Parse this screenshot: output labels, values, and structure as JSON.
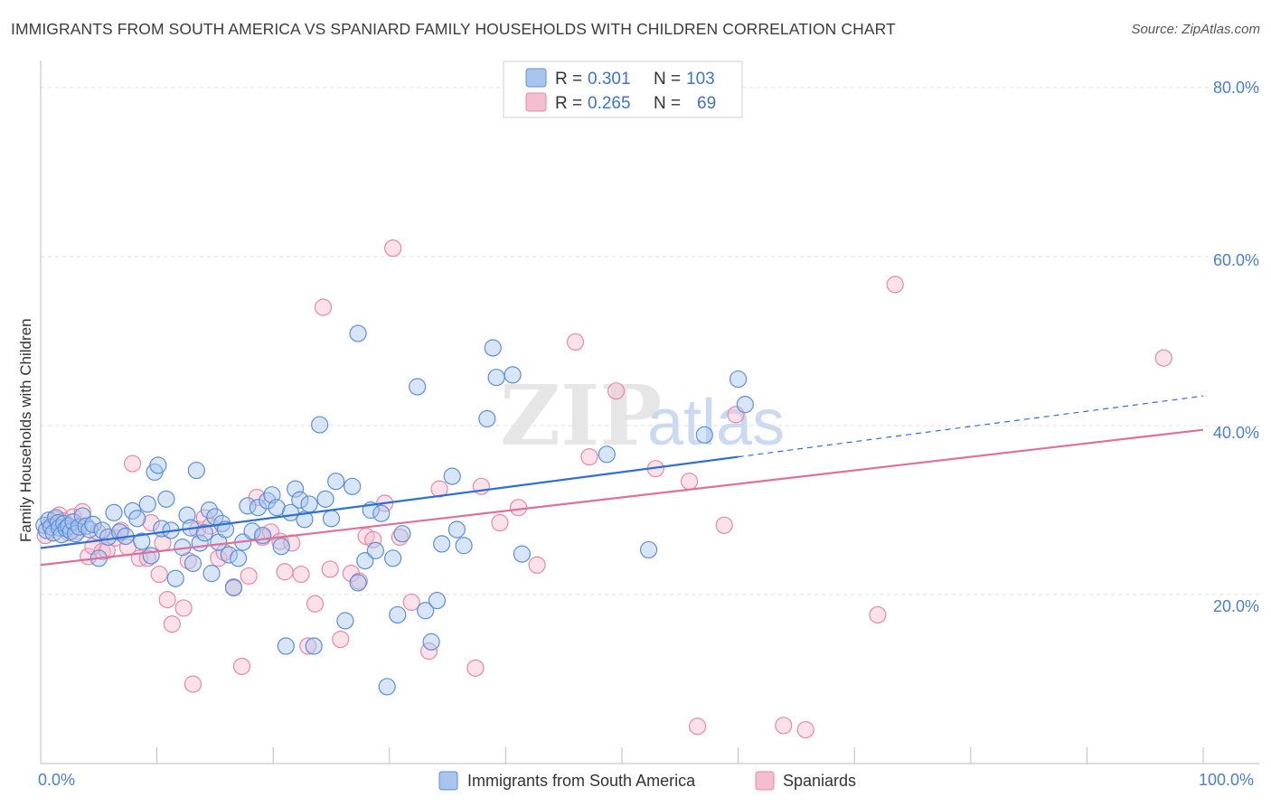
{
  "header": {
    "title": "IMMIGRANTS FROM SOUTH AMERICA VS SPANIARD FAMILY HOUSEHOLDS WITH CHILDREN CORRELATION CHART",
    "source": "Source: ZipAtlas.com"
  },
  "watermark": "ZIPatlas",
  "colors": {
    "blue": "#5b8fd8",
    "blue_fill": "#a9c5ee",
    "blue_line": "#2f6fd0",
    "pink": "#e58aa6",
    "pink_fill": "#f5bdd0",
    "pink_line": "#e0709a",
    "axis_text": "#4a7fd0"
  },
  "legend": {
    "r_label": "R =",
    "n_label": "N =",
    "blue_r": "0.301",
    "blue_n": "103",
    "pink_r": "0.265",
    "pink_n": "69"
  },
  "bottom_legend": {
    "blue": "Immigrants from South America",
    "pink": "Spaniards"
  },
  "chart_data": {
    "type": "scatter",
    "title": "IMMIGRANTS FROM SOUTH AMERICA VS SPANIARD FAMILY HOUSEHOLDS WITH CHILDREN CORRELATION CHART",
    "xlabel": "",
    "ylabel": "Family Households with Children",
    "xlim": [
      0,
      100
    ],
    "ylim": [
      0,
      80
    ],
    "x_tick_labels": [
      "0.0%",
      "100.0%"
    ],
    "y_tick_labels": [
      "20.0%",
      "40.0%",
      "60.0%",
      "80.0%"
    ],
    "y_ticks": [
      20,
      40,
      60,
      80
    ],
    "series": [
      {
        "name": "Immigrants from South America",
        "r": 0.301,
        "n": 103,
        "trend": {
          "x0": 0,
          "y0": 25.5,
          "x1": 60,
          "y1": 36.3,
          "dash_to_x": 100,
          "dash_to_y": 43.5
        },
        "points": [
          [
            0.3,
            28.2
          ],
          [
            0.5,
            27.6
          ],
          [
            0.7,
            28.8
          ],
          [
            0.9,
            28.0
          ],
          [
            1.1,
            27.3
          ],
          [
            1.3,
            29.1
          ],
          [
            1.5,
            28.5
          ],
          [
            1.6,
            27.9
          ],
          [
            1.8,
            27.1
          ],
          [
            2.0,
            28.4
          ],
          [
            2.2,
            27.8
          ],
          [
            2.4,
            28.1
          ],
          [
            2.6,
            27.5
          ],
          [
            2.8,
            28.6
          ],
          [
            3.0,
            27.2
          ],
          [
            3.3,
            28.0
          ],
          [
            3.6,
            29.3
          ],
          [
            3.9,
            28.1
          ],
          [
            4.2,
            27.7
          ],
          [
            4.5,
            28.3
          ],
          [
            5.0,
            24.3
          ],
          [
            5.3,
            27.6
          ],
          [
            5.8,
            26.8
          ],
          [
            6.3,
            29.7
          ],
          [
            6.8,
            27.4
          ],
          [
            7.3,
            26.9
          ],
          [
            7.9,
            29.9
          ],
          [
            8.3,
            29.0
          ],
          [
            8.7,
            26.3
          ],
          [
            9.2,
            30.7
          ],
          [
            9.5,
            24.6
          ],
          [
            9.8,
            34.5
          ],
          [
            10.1,
            35.3
          ],
          [
            10.4,
            27.8
          ],
          [
            10.8,
            31.3
          ],
          [
            11.2,
            27.6
          ],
          [
            11.6,
            21.9
          ],
          [
            12.2,
            25.6
          ],
          [
            12.6,
            29.4
          ],
          [
            12.9,
            27.9
          ],
          [
            13.1,
            23.7
          ],
          [
            13.4,
            34.7
          ],
          [
            13.7,
            26.1
          ],
          [
            14.1,
            27.3
          ],
          [
            14.5,
            30.0
          ],
          [
            14.7,
            22.5
          ],
          [
            15.0,
            29.2
          ],
          [
            15.3,
            26.2
          ],
          [
            15.6,
            28.4
          ],
          [
            15.9,
            27.7
          ],
          [
            16.2,
            24.7
          ],
          [
            16.6,
            20.8
          ],
          [
            17.0,
            24.3
          ],
          [
            17.4,
            26.2
          ],
          [
            17.8,
            30.5
          ],
          [
            18.2,
            27.5
          ],
          [
            18.7,
            30.3
          ],
          [
            19.1,
            27.0
          ],
          [
            19.5,
            31.1
          ],
          [
            19.9,
            31.8
          ],
          [
            20.3,
            30.3
          ],
          [
            20.7,
            25.7
          ],
          [
            21.1,
            13.9
          ],
          [
            21.5,
            29.7
          ],
          [
            21.9,
            32.5
          ],
          [
            22.3,
            31.2
          ],
          [
            22.7,
            28.9
          ],
          [
            23.1,
            30.7
          ],
          [
            23.5,
            13.9
          ],
          [
            24.0,
            40.1
          ],
          [
            24.5,
            31.3
          ],
          [
            25.0,
            29.0
          ],
          [
            25.4,
            33.4
          ],
          [
            26.2,
            16.9
          ],
          [
            26.8,
            32.8
          ],
          [
            27.3,
            21.4
          ],
          [
            27.9,
            24.0
          ],
          [
            28.4,
            30.0
          ],
          [
            28.8,
            25.2
          ],
          [
            29.3,
            29.6
          ],
          [
            29.8,
            9.1
          ],
          [
            30.3,
            24.3
          ],
          [
            30.7,
            17.6
          ],
          [
            31.1,
            27.2
          ],
          [
            32.4,
            44.6
          ],
          [
            33.1,
            18.1
          ],
          [
            33.6,
            14.4
          ],
          [
            34.1,
            19.3
          ],
          [
            34.5,
            26.0
          ],
          [
            35.4,
            34.0
          ],
          [
            35.8,
            27.7
          ],
          [
            36.4,
            25.8
          ],
          [
            38.4,
            40.8
          ],
          [
            38.9,
            49.2
          ],
          [
            39.2,
            45.7
          ],
          [
            40.6,
            46.0
          ],
          [
            41.4,
            24.8
          ],
          [
            48.7,
            36.6
          ],
          [
            52.3,
            25.3
          ],
          [
            57.1,
            38.9
          ],
          [
            60.0,
            45.5
          ],
          [
            60.6,
            42.5
          ],
          [
            27.3,
            50.9
          ]
        ]
      },
      {
        "name": "Spaniards",
        "r": 0.265,
        "n": 69,
        "trend": {
          "x0": 0,
          "y0": 23.5,
          "x1": 100,
          "y1": 39.5
        },
        "points": [
          [
            0.4,
            27.0
          ],
          [
            0.8,
            28.3
          ],
          [
            1.2,
            28.9
          ],
          [
            1.6,
            29.4
          ],
          [
            2.0,
            28.7
          ],
          [
            2.4,
            27.3
          ],
          [
            2.8,
            29.2
          ],
          [
            3.2,
            27.5
          ],
          [
            3.6,
            29.8
          ],
          [
            4.1,
            24.5
          ],
          [
            4.5,
            25.7
          ],
          [
            4.9,
            27.4
          ],
          [
            5.3,
            25.1
          ],
          [
            5.7,
            25.2
          ],
          [
            6.4,
            26.7
          ],
          [
            6.9,
            27.6
          ],
          [
            7.5,
            25.6
          ],
          [
            7.9,
            35.5
          ],
          [
            8.5,
            24.3
          ],
          [
            9.2,
            24.3
          ],
          [
            9.5,
            28.5
          ],
          [
            10.2,
            22.4
          ],
          [
            10.5,
            26.1
          ],
          [
            10.9,
            19.4
          ],
          [
            11.3,
            16.5
          ],
          [
            12.3,
            18.4
          ],
          [
            12.7,
            24.0
          ],
          [
            13.1,
            9.4
          ],
          [
            13.5,
            27.7
          ],
          [
            14.1,
            29.1
          ],
          [
            14.6,
            28.1
          ],
          [
            15.3,
            24.3
          ],
          [
            15.8,
            25.0
          ],
          [
            16.6,
            20.9
          ],
          [
            17.3,
            11.5
          ],
          [
            17.9,
            22.2
          ],
          [
            18.6,
            31.5
          ],
          [
            19.1,
            26.8
          ],
          [
            19.8,
            27.4
          ],
          [
            20.6,
            26.3
          ],
          [
            21.0,
            22.7
          ],
          [
            21.6,
            26.1
          ],
          [
            22.4,
            22.4
          ],
          [
            23.0,
            13.9
          ],
          [
            23.6,
            18.9
          ],
          [
            24.3,
            54.0
          ],
          [
            24.9,
            23.0
          ],
          [
            25.8,
            14.7
          ],
          [
            26.7,
            22.5
          ],
          [
            27.4,
            21.6
          ],
          [
            28.0,
            26.9
          ],
          [
            28.6,
            26.5
          ],
          [
            29.6,
            30.8
          ],
          [
            30.3,
            61.0
          ],
          [
            30.9,
            26.8
          ],
          [
            31.9,
            19.1
          ],
          [
            33.4,
            13.3
          ],
          [
            34.3,
            32.5
          ],
          [
            37.4,
            11.3
          ],
          [
            37.9,
            32.8
          ],
          [
            39.5,
            28.5
          ],
          [
            42.7,
            23.5
          ],
          [
            41.1,
            30.3
          ],
          [
            46.0,
            49.9
          ],
          [
            49.5,
            44.1
          ],
          [
            52.9,
            34.9
          ],
          [
            55.8,
            33.4
          ],
          [
            58.8,
            28.2
          ],
          [
            59.8,
            41.3
          ]
        ]
      }
    ],
    "extra_pink_points": [
      [
        63.9,
        4.5
      ],
      [
        65.8,
        4.0
      ],
      [
        72.0,
        17.6
      ],
      [
        73.5,
        56.7
      ],
      [
        96.6,
        48.0
      ],
      [
        47.2,
        36.3
      ],
      [
        56.5,
        4.4
      ]
    ]
  }
}
